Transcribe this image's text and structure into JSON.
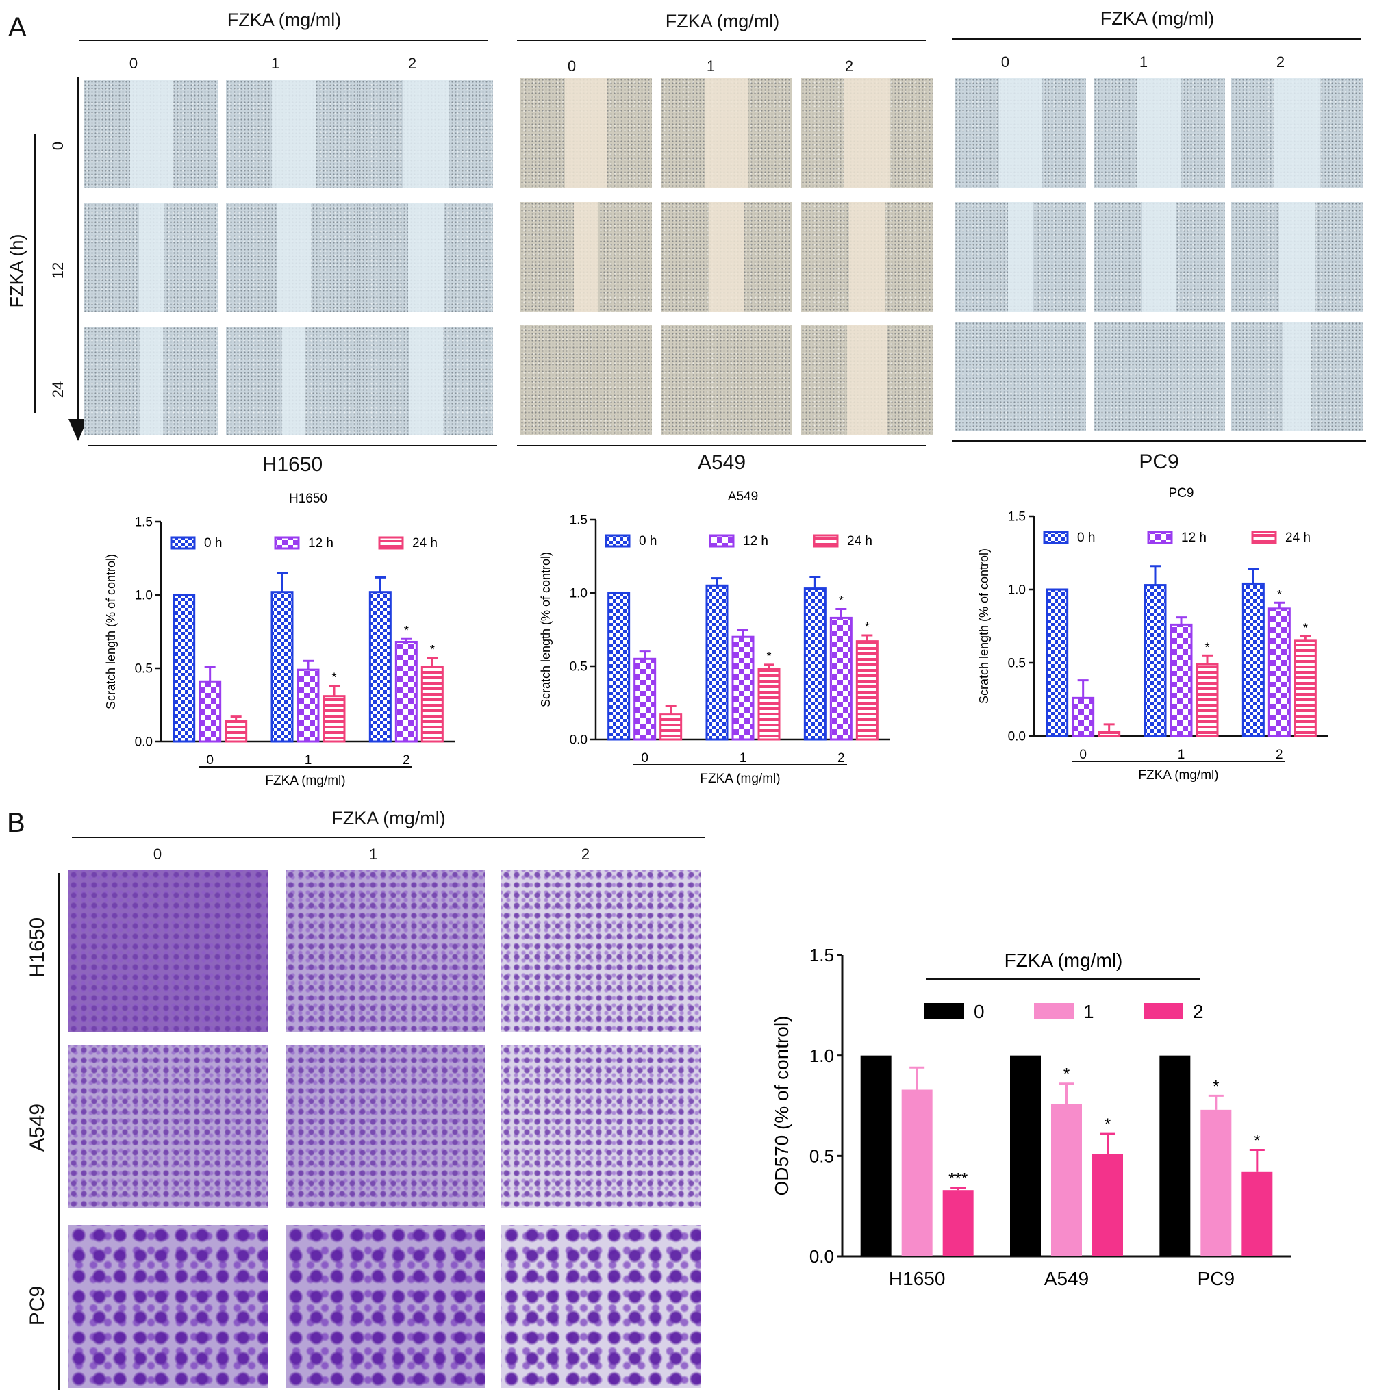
{
  "panels": {
    "a_letter": "A",
    "b_letter": "B"
  },
  "scratch": {
    "conc_header": "FZKA (mg/ml)",
    "conc_labels": [
      "0",
      "1",
      "2"
    ],
    "time_axis_label": "FZKA (h)",
    "time_labels": [
      "0",
      "12",
      "24"
    ],
    "cell_lines": [
      "H1650",
      "A549",
      "PC9"
    ]
  },
  "transwell": {
    "conc_header": "FZKA (mg/ml)",
    "conc_labels": [
      "0",
      "1",
      "2"
    ],
    "cell_lines": [
      "H1650",
      "A549",
      "PC9"
    ]
  },
  "colors": {
    "t0": "#1f3fe0",
    "t12": "#9a3cf0",
    "t24": "#f0407a",
    "c0": "#000000",
    "c1": "#f78ccb",
    "c2": "#f3338b"
  },
  "chart_data": [
    {
      "type": "bar",
      "title": "H1650",
      "ylabel": "Scratch length (% of control)",
      "xlabel": "FZKA (mg/ml)",
      "categories": [
        "0",
        "1",
        "2"
      ],
      "ylim": [
        0,
        1.5
      ],
      "yticks": [
        "0.0",
        "0.5",
        "1.0",
        "1.5"
      ],
      "series": [
        {
          "name": "0 h",
          "values": [
            1.0,
            1.02,
            1.02
          ],
          "errors": [
            0.0,
            0.13,
            0.1
          ],
          "sig": [
            "",
            "",
            ""
          ]
        },
        {
          "name": "12 h",
          "values": [
            0.41,
            0.49,
            0.68
          ],
          "errors": [
            0.1,
            0.06,
            0.02
          ],
          "sig": [
            "",
            "",
            "*"
          ]
        },
        {
          "name": "24 h",
          "values": [
            0.14,
            0.31,
            0.51
          ],
          "errors": [
            0.03,
            0.07,
            0.06
          ],
          "sig": [
            "",
            "*",
            "*"
          ]
        }
      ],
      "legend": "top"
    },
    {
      "type": "bar",
      "title": "A549",
      "ylabel": "Scratch length (% of control)",
      "xlabel": "FZKA (mg/ml)",
      "categories": [
        "0",
        "1",
        "2"
      ],
      "ylim": [
        0,
        1.5
      ],
      "yticks": [
        "0.0",
        "0.5",
        "1.0",
        "1.5"
      ],
      "series": [
        {
          "name": "0 h",
          "values": [
            1.0,
            1.05,
            1.03
          ],
          "errors": [
            0.0,
            0.05,
            0.08
          ],
          "sig": [
            "",
            "",
            ""
          ]
        },
        {
          "name": "12 h",
          "values": [
            0.55,
            0.7,
            0.83
          ],
          "errors": [
            0.05,
            0.05,
            0.06
          ],
          "sig": [
            "",
            "",
            "*"
          ]
        },
        {
          "name": "24 h",
          "values": [
            0.17,
            0.48,
            0.67
          ],
          "errors": [
            0.06,
            0.03,
            0.04
          ],
          "sig": [
            "",
            "*",
            "*"
          ]
        }
      ],
      "legend": "top"
    },
    {
      "type": "bar",
      "title": "PC9",
      "ylabel": "Scratch length (% of control)",
      "xlabel": "FZKA (mg/ml)",
      "categories": [
        "0",
        "1",
        "2"
      ],
      "ylim": [
        0,
        1.5
      ],
      "yticks": [
        "0.0",
        "0.5",
        "1.0",
        "1.5"
      ],
      "series": [
        {
          "name": "0 h",
          "values": [
            1.0,
            1.03,
            1.04
          ],
          "errors": [
            0.0,
            0.13,
            0.1
          ],
          "sig": [
            "",
            "",
            ""
          ]
        },
        {
          "name": "12 h",
          "values": [
            0.26,
            0.76,
            0.87
          ],
          "errors": [
            0.12,
            0.05,
            0.04
          ],
          "sig": [
            "",
            "",
            "*"
          ]
        },
        {
          "name": "24 h",
          "values": [
            0.03,
            0.49,
            0.65
          ],
          "errors": [
            0.05,
            0.06,
            0.03
          ],
          "sig": [
            "",
            "*",
            "*"
          ]
        }
      ],
      "legend": "top"
    },
    {
      "type": "bar",
      "title": "",
      "ylabel": "OD570 (% of control)",
      "xlabel": "",
      "legend_title": "FZKA (mg/ml)",
      "categories": [
        "H1650",
        "A549",
        "PC9"
      ],
      "ylim": [
        0,
        1.5
      ],
      "yticks": [
        "0.0",
        "0.5",
        "1.0",
        "1.5"
      ],
      "series": [
        {
          "name": "0",
          "values": [
            1.0,
            1.0,
            1.0
          ],
          "errors": [
            0.0,
            0.0,
            0.0
          ],
          "sig": [
            "",
            "",
            ""
          ]
        },
        {
          "name": "1",
          "values": [
            0.83,
            0.76,
            0.73
          ],
          "errors": [
            0.11,
            0.1,
            0.07
          ],
          "sig": [
            "",
            "*",
            "*"
          ]
        },
        {
          "name": "2",
          "values": [
            0.33,
            0.51,
            0.42
          ],
          "errors": [
            0.01,
            0.1,
            0.11
          ],
          "sig": [
            "***",
            "*",
            "*"
          ]
        }
      ],
      "legend": "top"
    }
  ]
}
